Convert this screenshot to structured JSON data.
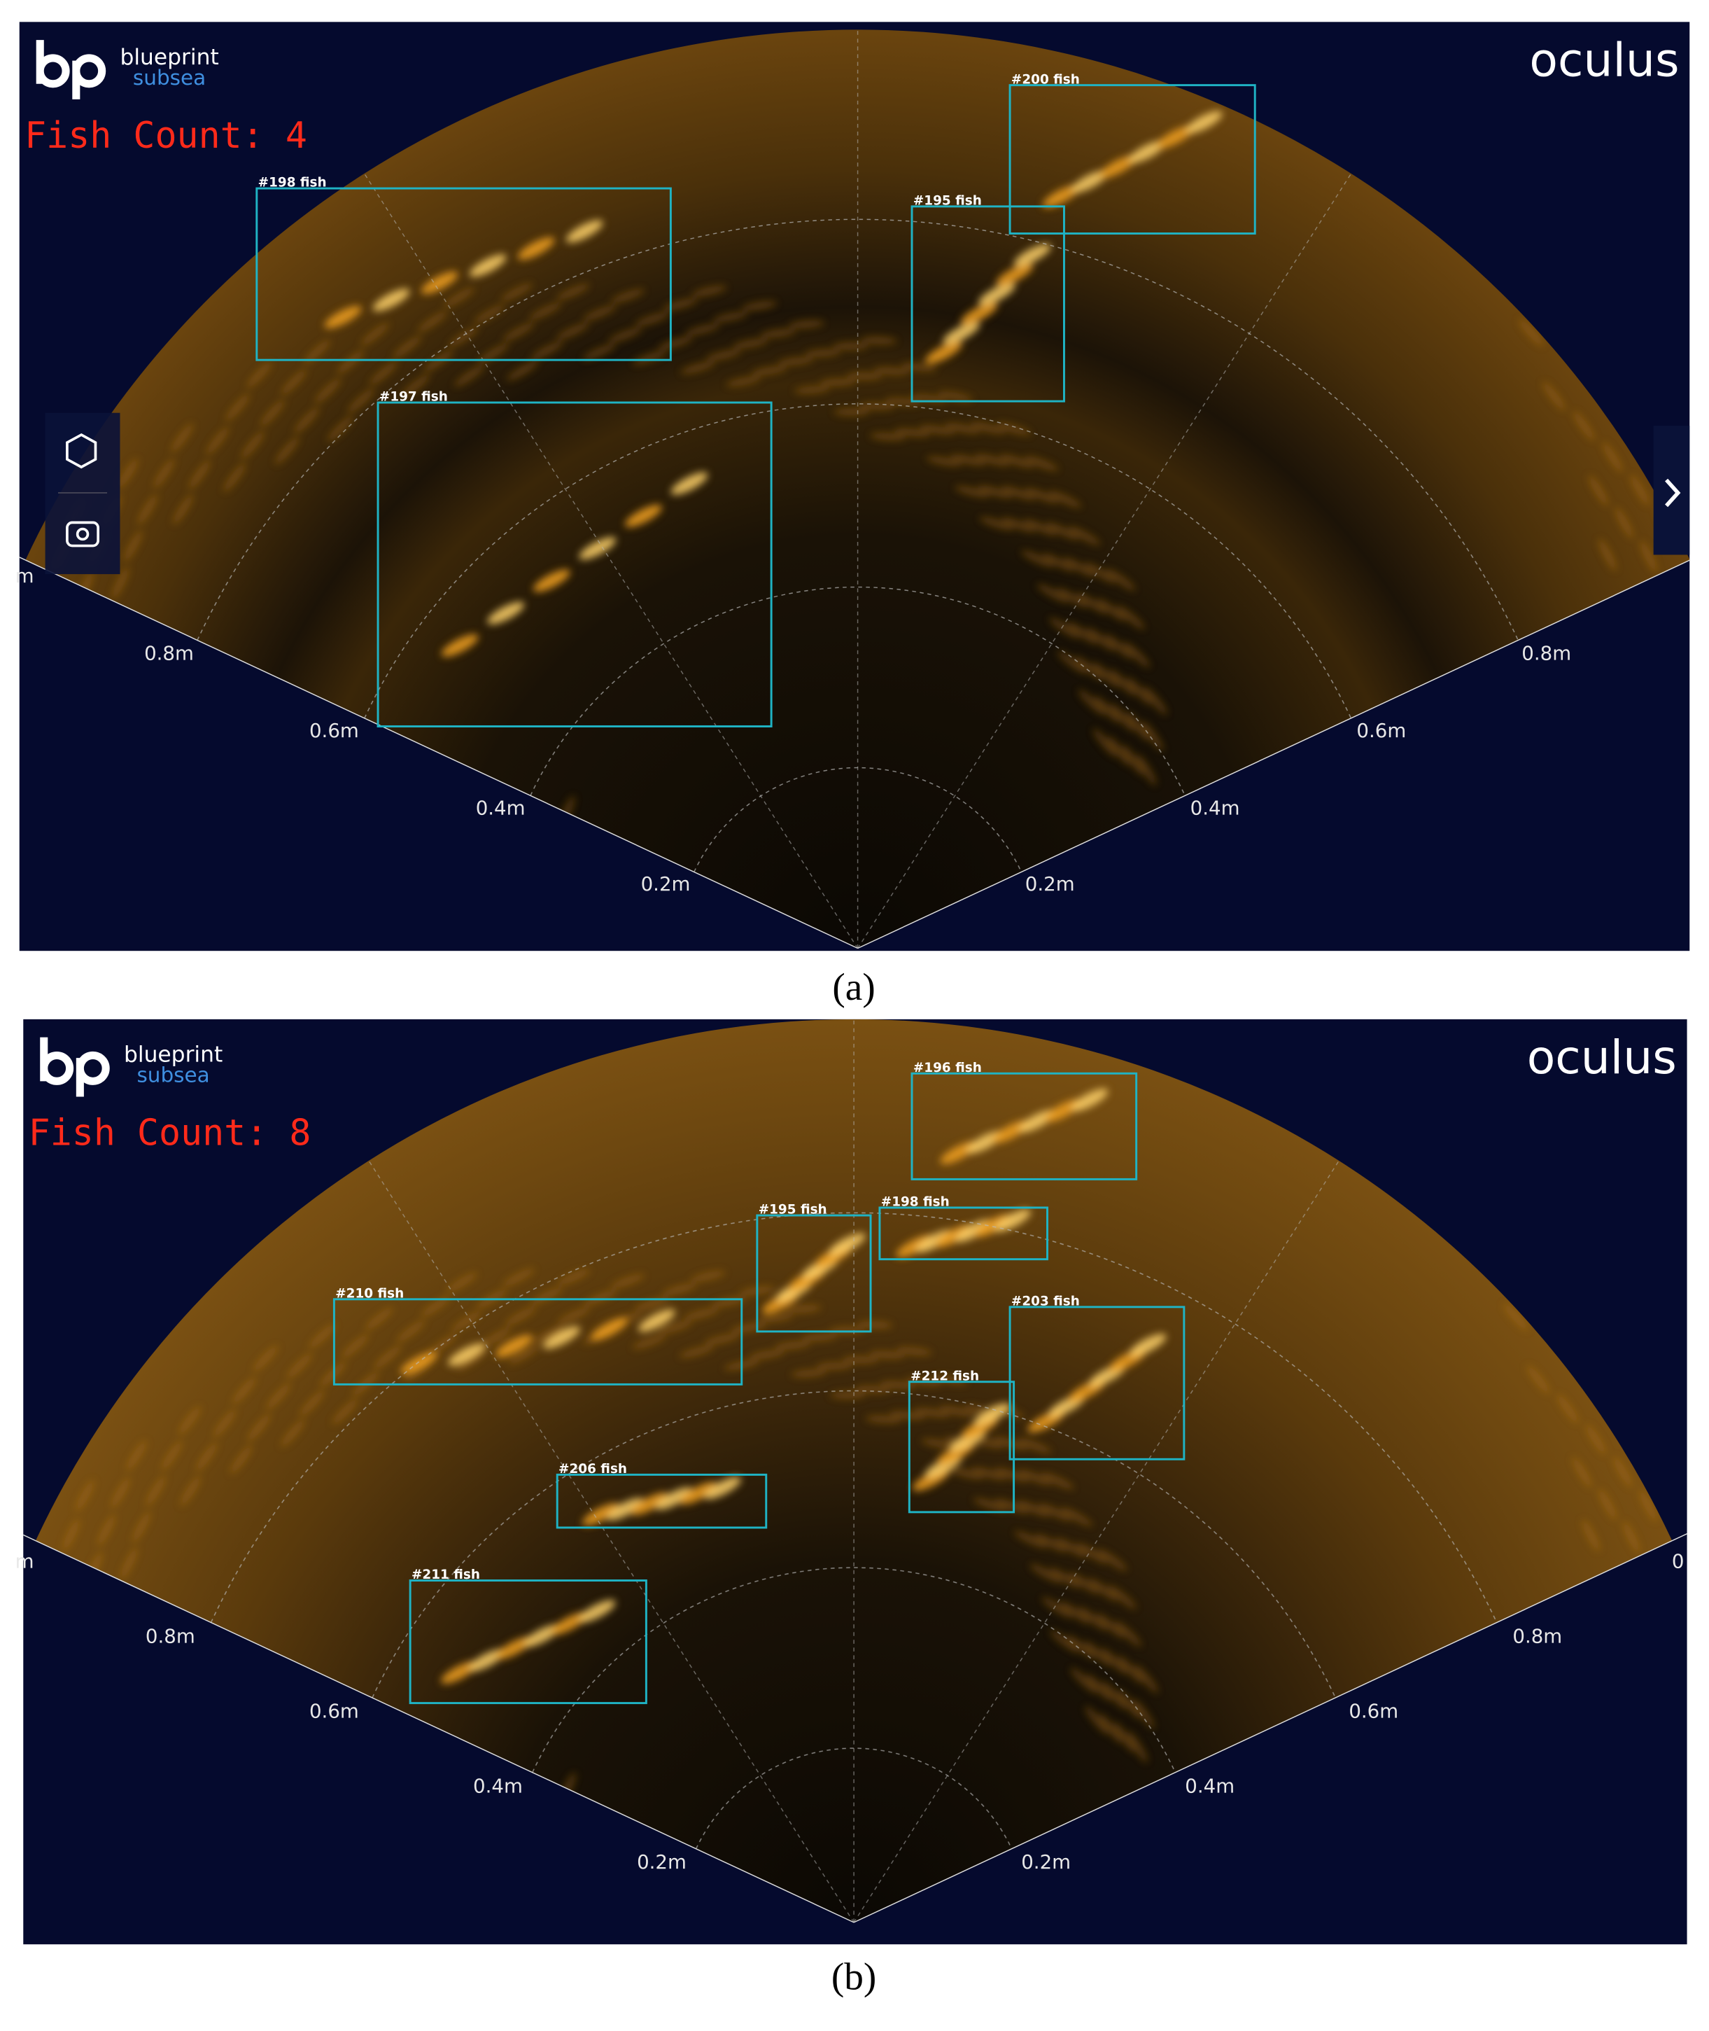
{
  "panels": [
    {
      "logo": {
        "name": "blueprint",
        "sub": "subsea"
      },
      "brand": "oculus",
      "fish_count": "Fish Count: 4",
      "ranges_left": [
        "0.8m",
        "0.6m",
        "0.4m",
        "0.2m"
      ],
      "ranges_right": [
        "0.8m",
        "0.6m",
        "0.4m",
        "0.2m"
      ],
      "edge_labels": [
        "m"
      ],
      "detections": [
        "#198 fish",
        "#197 fish",
        "#195 fish",
        "#200 fish"
      ],
      "caption": "(a)"
    },
    {
      "logo": {
        "name": "blueprint",
        "sub": "subsea"
      },
      "brand": "oculus",
      "fish_count": "Fish Count: 8",
      "ranges_left": [
        "0.8m",
        "0.6m",
        "0.4m",
        "0.2m"
      ],
      "ranges_right": [
        "0.8m",
        "0.6m",
        "0.4m",
        "0.2m"
      ],
      "edge_labels": [
        "m",
        "0"
      ],
      "detections": [
        "#196 fish",
        "#195 fish",
        "#198 fish",
        "#210 fish",
        "#203 fish",
        "#212 fish",
        "#206 fish",
        "#211 fish"
      ],
      "caption": "(b)"
    }
  ]
}
